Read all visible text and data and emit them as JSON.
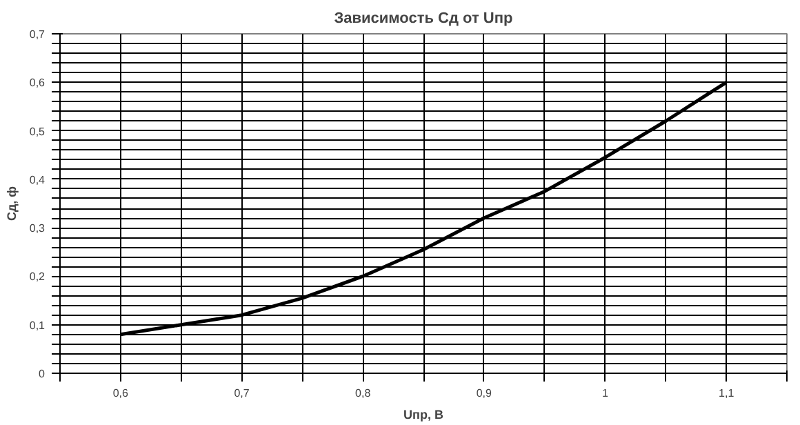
{
  "chart_data": {
    "type": "line",
    "title": "Зависимость Cд от Uпр",
    "xlabel": "Uпр, В",
    "ylabel": "Cд, ф",
    "x": [
      0.6,
      0.65,
      0.7,
      0.75,
      0.8,
      0.85,
      0.9,
      0.95,
      1.0,
      1.05,
      1.1
    ],
    "series": [
      {
        "color": "#000000",
        "values": [
          0.08,
          0.1,
          0.12,
          0.155,
          0.2,
          0.255,
          0.32,
          0.375,
          0.445,
          0.52,
          0.6
        ]
      }
    ],
    "xlim": [
      0.55,
      1.15
    ],
    "xticks": [
      {
        "value": 0.55,
        "label": null
      },
      {
        "value": 0.6,
        "label": "0,6"
      },
      {
        "value": 0.65,
        "label": null
      },
      {
        "value": 0.7,
        "label": "0,7"
      },
      {
        "value": 0.75,
        "label": null
      },
      {
        "value": 0.8,
        "label": "0,8"
      },
      {
        "value": 0.85,
        "label": null
      },
      {
        "value": 0.9,
        "label": "0,9"
      },
      {
        "value": 0.95,
        "label": null
      },
      {
        "value": 1.0,
        "label": "1"
      },
      {
        "value": 1.05,
        "label": null
      },
      {
        "value": 1.1,
        "label": "1,1"
      },
      {
        "value": 1.15,
        "label": null
      }
    ],
    "ylim": [
      0,
      0.7
    ],
    "yticks": [
      {
        "value": 0,
        "label": "0"
      },
      {
        "value": 0.02,
        "label": null
      },
      {
        "value": 0.04,
        "label": null
      },
      {
        "value": 0.06,
        "label": null
      },
      {
        "value": 0.08,
        "label": null
      },
      {
        "value": 0.1,
        "label": "0,1"
      },
      {
        "value": 0.12,
        "label": null
      },
      {
        "value": 0.14,
        "label": null
      },
      {
        "value": 0.16,
        "label": null
      },
      {
        "value": 0.18,
        "label": null
      },
      {
        "value": 0.2,
        "label": "0,2"
      },
      {
        "value": 0.22,
        "label": null
      },
      {
        "value": 0.24,
        "label": null
      },
      {
        "value": 0.26,
        "label": null
      },
      {
        "value": 0.28,
        "label": null
      },
      {
        "value": 0.3,
        "label": "0,3"
      },
      {
        "value": 0.32,
        "label": null
      },
      {
        "value": 0.34,
        "label": null
      },
      {
        "value": 0.36,
        "label": null
      },
      {
        "value": 0.38,
        "label": null
      },
      {
        "value": 0.4,
        "label": "0,4"
      },
      {
        "value": 0.42,
        "label": null
      },
      {
        "value": 0.44,
        "label": null
      },
      {
        "value": 0.46,
        "label": null
      },
      {
        "value": 0.48,
        "label": null
      },
      {
        "value": 0.5,
        "label": "0,5"
      },
      {
        "value": 0.52,
        "label": null
      },
      {
        "value": 0.54,
        "label": null
      },
      {
        "value": 0.56,
        "label": null
      },
      {
        "value": 0.58,
        "label": null
      },
      {
        "value": 0.6,
        "label": "0,6"
      },
      {
        "value": 0.62,
        "label": null
      },
      {
        "value": 0.64,
        "label": null
      },
      {
        "value": 0.66,
        "label": null
      },
      {
        "value": 0.68,
        "label": null
      },
      {
        "value": 0.7,
        "label": "0,7"
      }
    ],
    "grid": true,
    "marker": "none",
    "line_style": "solid"
  }
}
